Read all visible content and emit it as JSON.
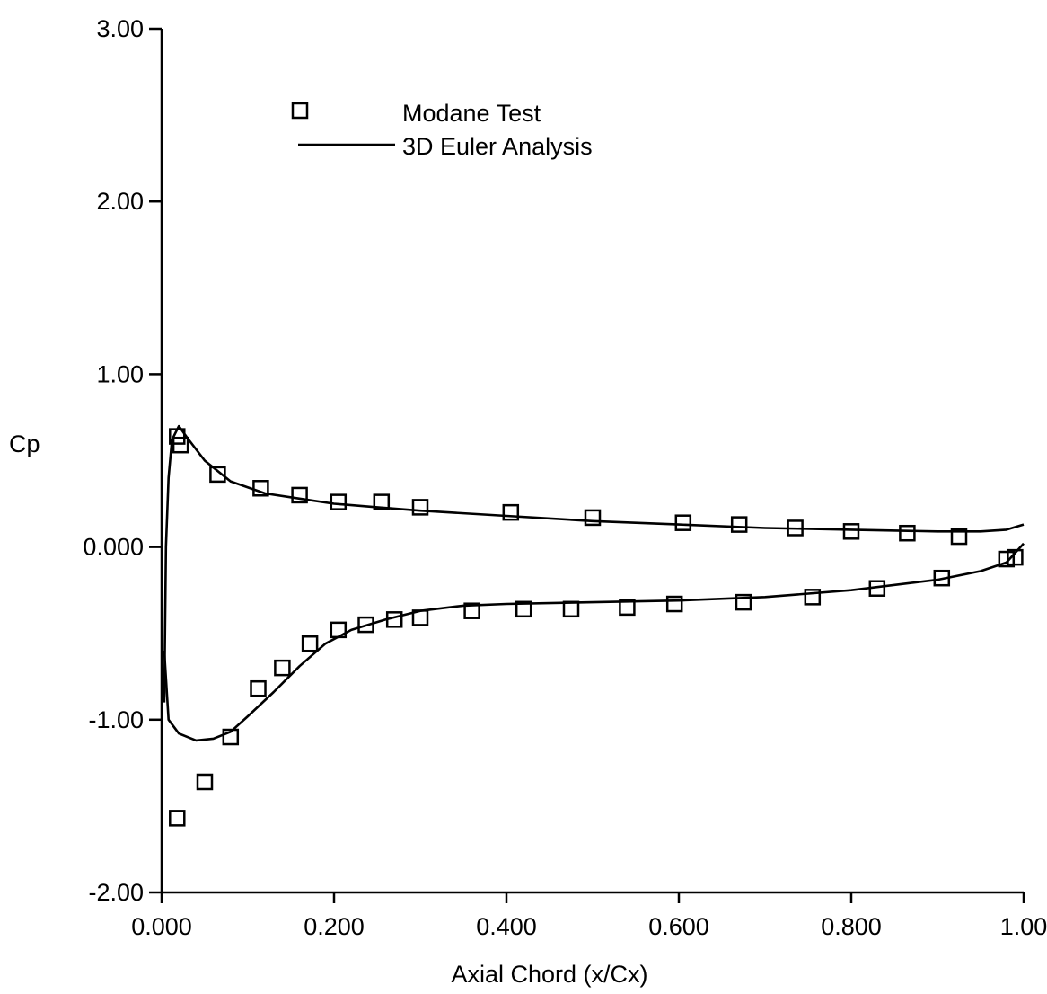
{
  "chart_data": {
    "type": "scatter",
    "title": "",
    "xlabel": "Axial Chord (x/Cx)",
    "ylabel": "Cp",
    "xlim": [
      0,
      1
    ],
    "ylim": [
      -2,
      3
    ],
    "x_ticks": [
      0,
      0.2,
      0.4,
      0.6,
      0.8,
      1.0
    ],
    "x_tick_labels": [
      "0.000",
      "0.200",
      "0.400",
      "0.600",
      "0.800",
      "1.00"
    ],
    "y_ticks": [
      3,
      2,
      1,
      0,
      -1,
      -2
    ],
    "y_tick_labels": [
      "3.00",
      "2.00",
      "1.00",
      "0.000",
      "-1.00",
      "-2.00"
    ],
    "grid": false,
    "legend_position": "top-center",
    "series": [
      {
        "name": "Modane Test",
        "style": "open-square-markers",
        "points": [
          [
            0.018,
            0.64
          ],
          [
            0.022,
            0.59
          ],
          [
            0.065,
            0.42
          ],
          [
            0.115,
            0.34
          ],
          [
            0.16,
            0.3
          ],
          [
            0.205,
            0.26
          ],
          [
            0.255,
            0.26
          ],
          [
            0.3,
            0.23
          ],
          [
            0.405,
            0.2
          ],
          [
            0.5,
            0.17
          ],
          [
            0.605,
            0.14
          ],
          [
            0.67,
            0.13
          ],
          [
            0.735,
            0.11
          ],
          [
            0.8,
            0.09
          ],
          [
            0.865,
            0.08
          ],
          [
            0.925,
            0.06
          ],
          [
            0.018,
            -1.57
          ],
          [
            0.05,
            -1.36
          ],
          [
            0.08,
            -1.1
          ],
          [
            0.112,
            -0.82
          ],
          [
            0.14,
            -0.7
          ],
          [
            0.172,
            -0.56
          ],
          [
            0.205,
            -0.48
          ],
          [
            0.237,
            -0.45
          ],
          [
            0.27,
            -0.42
          ],
          [
            0.3,
            -0.41
          ],
          [
            0.36,
            -0.37
          ],
          [
            0.42,
            -0.36
          ],
          [
            0.475,
            -0.36
          ],
          [
            0.54,
            -0.35
          ],
          [
            0.595,
            -0.33
          ],
          [
            0.675,
            -0.32
          ],
          [
            0.755,
            -0.29
          ],
          [
            0.83,
            -0.24
          ],
          [
            0.905,
            -0.18
          ],
          [
            0.98,
            -0.07
          ],
          [
            0.99,
            -0.06
          ]
        ]
      },
      {
        "name": "3D Euler Analysis",
        "style": "solid-line",
        "lines": [
          [
            [
              0.003,
              -0.9
            ],
            [
              0.005,
              0.0
            ],
            [
              0.008,
              0.4
            ],
            [
              0.012,
              0.62
            ],
            [
              0.02,
              0.7
            ],
            [
              0.03,
              0.63
            ],
            [
              0.05,
              0.5
            ],
            [
              0.08,
              0.38
            ],
            [
              0.12,
              0.31
            ],
            [
              0.16,
              0.28
            ],
            [
              0.2,
              0.25
            ],
            [
              0.25,
              0.23
            ],
            [
              0.3,
              0.21
            ],
            [
              0.4,
              0.18
            ],
            [
              0.5,
              0.15
            ],
            [
              0.6,
              0.13
            ],
            [
              0.7,
              0.11
            ],
            [
              0.8,
              0.1
            ],
            [
              0.9,
              0.09
            ],
            [
              0.95,
              0.09
            ],
            [
              0.98,
              0.1
            ],
            [
              1.0,
              0.13
            ]
          ],
          [
            [
              0.003,
              -0.6
            ],
            [
              0.008,
              -1.0
            ],
            [
              0.02,
              -1.08
            ],
            [
              0.04,
              -1.12
            ],
            [
              0.06,
              -1.11
            ],
            [
              0.08,
              -1.07
            ],
            [
              0.1,
              -0.98
            ],
            [
              0.13,
              -0.84
            ],
            [
              0.16,
              -0.69
            ],
            [
              0.19,
              -0.56
            ],
            [
              0.22,
              -0.48
            ],
            [
              0.26,
              -0.42
            ],
            [
              0.3,
              -0.37
            ],
            [
              0.35,
              -0.34
            ],
            [
              0.4,
              -0.33
            ],
            [
              0.5,
              -0.32
            ],
            [
              0.6,
              -0.31
            ],
            [
              0.7,
              -0.29
            ],
            [
              0.8,
              -0.25
            ],
            [
              0.9,
              -0.19
            ],
            [
              0.95,
              -0.14
            ],
            [
              0.98,
              -0.09
            ],
            [
              1.0,
              0.02
            ]
          ]
        ]
      }
    ]
  }
}
